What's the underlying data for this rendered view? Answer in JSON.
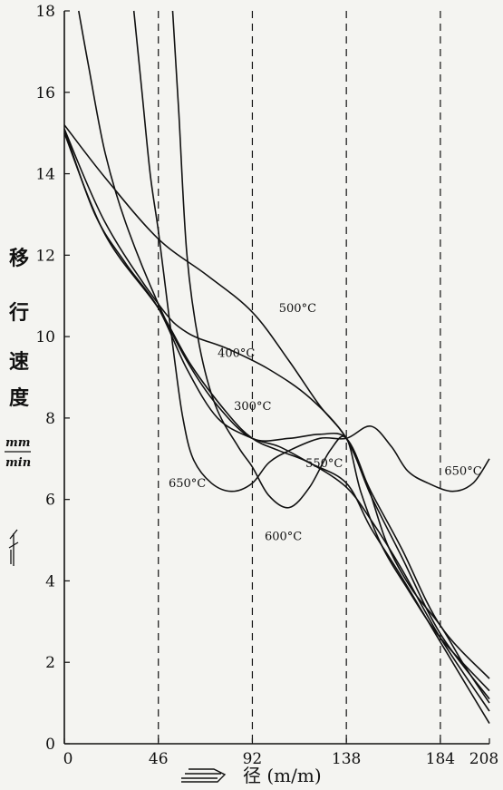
{
  "chart_data": {
    "type": "line",
    "xlabel": "径 (m/m)",
    "ylabel_chars": [
      "移",
      "行",
      "速",
      "度"
    ],
    "ylabel_unit_num": "mm",
    "ylabel_unit_den": "min",
    "xlim": [
      0,
      208
    ],
    "ylim": [
      0,
      18
    ],
    "xticks": [
      0,
      46,
      92,
      138,
      184,
      208
    ],
    "yticks": [
      0,
      2,
      4,
      6,
      8,
      10,
      12,
      14,
      16,
      18
    ],
    "dashed_x": [
      46,
      92,
      138,
      184
    ],
    "grid": false,
    "series": [
      {
        "name": "500°C",
        "label_at": [
          105,
          10.6
        ],
        "points": [
          [
            0,
            15.2
          ],
          [
            20,
            13.9
          ],
          [
            46,
            12.4
          ],
          [
            70,
            11.5
          ],
          [
            92,
            10.6
          ],
          [
            110,
            9.4
          ],
          [
            125,
            8.3
          ],
          [
            138,
            7.5
          ],
          [
            150,
            6.2
          ],
          [
            165,
            4.8
          ],
          [
            184,
            2.9
          ],
          [
            208,
            1.6
          ]
        ]
      },
      {
        "name": "400°C",
        "label_at": [
          75,
          9.5
        ],
        "points": [
          [
            0,
            15.1
          ],
          [
            20,
            12.8
          ],
          [
            46,
            10.8
          ],
          [
            60,
            10.1
          ],
          [
            80,
            9.7
          ],
          [
            100,
            9.2
          ],
          [
            120,
            8.5
          ],
          [
            138,
            7.5
          ],
          [
            150,
            6.1
          ],
          [
            165,
            4.6
          ],
          [
            184,
            2.7
          ],
          [
            208,
            1.1
          ]
        ]
      },
      {
        "name": "300°C",
        "label_at": [
          83,
          8.2
        ],
        "points": [
          [
            0,
            15.0
          ],
          [
            20,
            12.5
          ],
          [
            46,
            10.7
          ],
          [
            62,
            9.3
          ],
          [
            80,
            8.1
          ],
          [
            92,
            7.5
          ],
          [
            105,
            7.2
          ],
          [
            120,
            6.9
          ],
          [
            138,
            6.3
          ],
          [
            150,
            5.5
          ],
          [
            165,
            4.3
          ],
          [
            184,
            2.6
          ],
          [
            208,
            0.8
          ]
        ]
      },
      {
        "name": "550°C",
        "label_at": [
          118,
          6.8
        ],
        "points": [
          [
            0,
            15.1
          ],
          [
            15,
            13.0
          ],
          [
            30,
            11.8
          ],
          [
            46,
            10.7
          ],
          [
            60,
            9.2
          ],
          [
            75,
            8.0
          ],
          [
            92,
            7.5
          ],
          [
            105,
            7.3
          ],
          [
            120,
            6.9
          ],
          [
            138,
            6.4
          ],
          [
            150,
            5.3
          ],
          [
            165,
            4.1
          ],
          [
            184,
            2.5
          ],
          [
            208,
            0.5
          ]
        ]
      },
      {
        "name": "600°C",
        "label_at": [
          98,
          5.0
        ],
        "points": [
          [
            53,
            18.0
          ],
          [
            56,
            15.5
          ],
          [
            60,
            12.0
          ],
          [
            66,
            9.8
          ],
          [
            74,
            8.3
          ],
          [
            85,
            7.3
          ],
          [
            92,
            6.8
          ],
          [
            100,
            6.1
          ],
          [
            110,
            5.8
          ],
          [
            120,
            6.3
          ],
          [
            130,
            7.2
          ],
          [
            138,
            7.5
          ],
          [
            145,
            6.2
          ],
          [
            155,
            4.9
          ],
          [
            168,
            3.8
          ],
          [
            184,
            2.6
          ],
          [
            208,
            1.3
          ]
        ]
      },
      {
        "name": "650°C",
        "label_at": [
          51,
          6.3
        ],
        "points": [
          [
            34,
            18.0
          ],
          [
            38,
            16.0
          ],
          [
            42,
            14.0
          ],
          [
            46,
            12.6
          ],
          [
            50,
            11.0
          ],
          [
            54,
            9.4
          ],
          [
            58,
            8.0
          ],
          [
            63,
            7.0
          ],
          [
            72,
            6.4
          ],
          [
            82,
            6.2
          ],
          [
            92,
            6.4
          ],
          [
            100,
            6.9
          ],
          [
            110,
            7.2
          ],
          [
            125,
            7.5
          ],
          [
            138,
            7.5
          ],
          [
            150,
            7.8
          ],
          [
            160,
            7.3
          ],
          [
            168,
            6.7
          ],
          [
            178,
            6.4
          ],
          [
            190,
            6.2
          ],
          [
            200,
            6.4
          ],
          [
            208,
            7.0
          ]
        ]
      },
      {
        "name": "",
        "label_at": null,
        "points": [
          [
            7,
            18.0
          ],
          [
            12,
            16.6
          ],
          [
            20,
            14.5
          ],
          [
            30,
            12.8
          ],
          [
            46,
            10.8
          ],
          [
            60,
            9.4
          ],
          [
            75,
            8.3
          ],
          [
            92,
            7.5
          ],
          [
            110,
            7.5
          ],
          [
            125,
            7.6
          ],
          [
            138,
            7.5
          ],
          [
            148,
            6.4
          ],
          [
            158,
            4.9
          ],
          [
            170,
            3.8
          ],
          [
            184,
            2.9
          ],
          [
            196,
            1.9
          ],
          [
            208,
            1.0
          ]
        ]
      }
    ],
    "annotations": [
      {
        "text": "650°C",
        "at": [
          186,
          6.6
        ]
      }
    ]
  }
}
